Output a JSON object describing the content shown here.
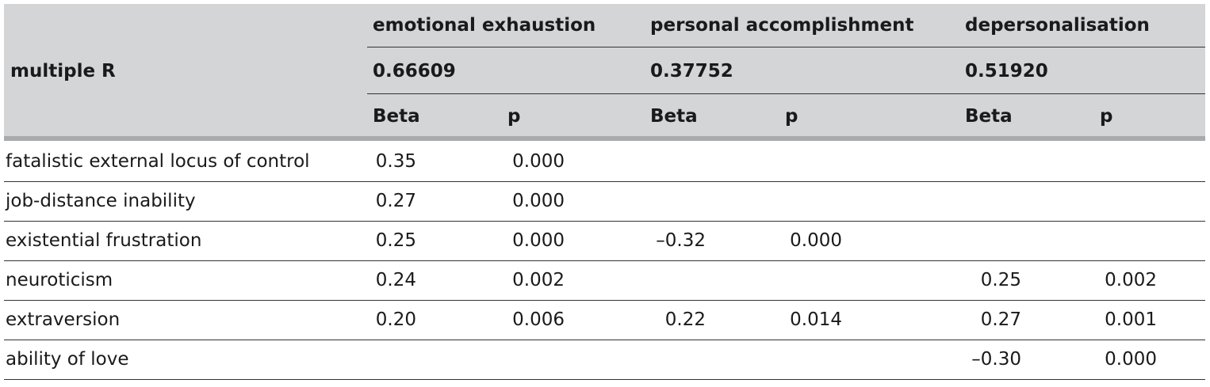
{
  "header": {
    "row_label": "multiple R",
    "groups": [
      {
        "title": "emotional exhaustion",
        "multiple_r": "0.66609",
        "columns": [
          "Beta",
          "p"
        ]
      },
      {
        "title": "personal accomplishment",
        "multiple_r": "0.37752",
        "columns": [
          "Beta",
          "p"
        ]
      },
      {
        "title": "depersonalisation",
        "multiple_r": "0.51920",
        "columns": [
          "Beta",
          "p"
        ]
      }
    ]
  },
  "table": {
    "rows": [
      {
        "label": "fatalistic external locus of control",
        "cells": [
          "0.35",
          "0.000",
          null,
          null,
          null,
          null
        ]
      },
      {
        "label": "job-distance inability",
        "cells": [
          "0.27",
          "0.000",
          null,
          null,
          null,
          null
        ]
      },
      {
        "label": "existential frustration",
        "cells": [
          "0.25",
          "0.000",
          "–0.32",
          "0.000",
          null,
          null
        ]
      },
      {
        "label": "neuroticism",
        "cells": [
          "0.24",
          "0.002",
          null,
          null,
          "0.25",
          "0.002"
        ]
      },
      {
        "label": "extraversion",
        "cells": [
          "0.20",
          "0.006",
          "0.22",
          "0.014",
          "0.27",
          "0.001"
        ]
      },
      {
        "label": "ability of love",
        "cells": [
          null,
          null,
          null,
          null,
          "–0.30",
          "0.000"
        ]
      }
    ]
  }
}
